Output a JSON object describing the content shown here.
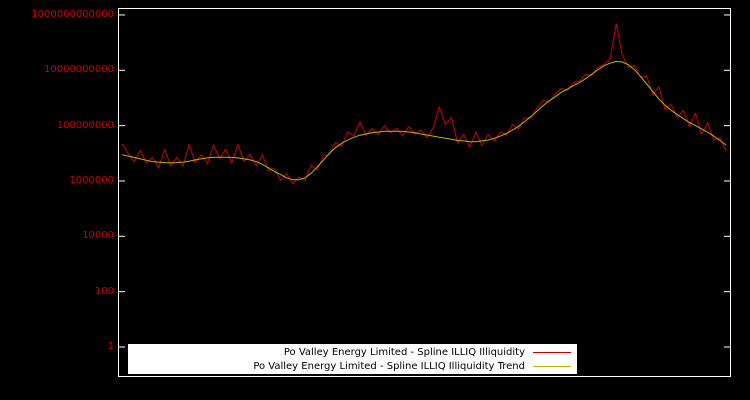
{
  "colors": {
    "background": "#000000",
    "axis_box": "#ffffff",
    "tick_labels": "#cc0000",
    "legend_background": "#ffffff",
    "series_illiquidity": "#cc0000",
    "series_trend": "#b8b800"
  },
  "chart_data": {
    "type": "line",
    "title": "",
    "xlabel": "",
    "ylabel": "",
    "y_scale": "log",
    "ylim": [
      1,
      1000000000000
    ],
    "yticks": [
      1,
      100,
      10000,
      1000000,
      100000000,
      10000000000,
      1000000000000
    ],
    "x_tick_labels_visible": false,
    "grid": false,
    "legend_position": "bottom-inside",
    "series": [
      {
        "name": "Po Valley Energy Limited - Spline ILLIQ Illiquidity",
        "color": "#cc0000",
        "values": [
          22000000.0,
          10000000.0,
          5000000.0,
          12600000.0,
          4500000.0,
          7100000.0,
          3000000.0,
          14000000.0,
          3500000.0,
          7200000.0,
          3400000.0,
          21000000.0,
          4600000.0,
          8900000.0,
          4300000.0,
          20000000.0,
          6500000.0,
          14000000.0,
          4500000.0,
          21000000.0,
          5000000.0,
          9100000.0,
          3500000.0,
          8900000.0,
          2400000.0,
          2800000.0,
          1050000.0,
          1900000.0,
          790000.0,
          1400000.0,
          1050000.0,
          3800000.0,
          2500000.0,
          7900000.0,
          8900000.0,
          25000000.0,
          18000000.0,
          60000000.0,
          43000000.0,
          140000000.0,
          45000000.0,
          78000000.0,
          47000000.0,
          98000000.0,
          56000000.0,
          79000000.0,
          44000000.0,
          93000000.0,
          49000000.0,
          71000000.0,
          36000000.0,
          83000000.0,
          480000000.0,
          110000000.0,
          200000000.0,
          23000000.0,
          49000000.0,
          17000000.0,
          59000000.0,
          19000000.0,
          48000000.0,
          28000000.0,
          59000000.0,
          47000000.0,
          110000000.0,
          76000000.0,
          190000000.0,
          190000000.0,
          420000000.0,
          830000000.0,
          710000000.0,
          1400000000.0,
          2200000000.0,
          1900000000.0,
          3500000000.0,
          4100000000.0,
          7100000000.0,
          6500000000.0,
          13000000000.0,
          16000000000.0,
          26000000000.0,
          470000000000.0,
          35000000000.0,
          12600000000.0,
          15000000000.0,
          5400000000.0,
          6300000000.0,
          1300000000.0,
          2600000000.0,
          390000000.0,
          580000000.0,
          200000000.0,
          360000000.0,
          93000000.0,
          280000000.0,
          48000000.0,
          130000000.0,
          30000000.0,
          36000000.0,
          12600000.0
        ]
      },
      {
        "name": "Po Valley Energy Limited - Spline ILLIQ Illiquidity Trend",
        "color": "#b8b800",
        "values": [
          8900000.0,
          7900000.0,
          7100000.0,
          6300000.0,
          5600000.0,
          5000000.0,
          4800000.0,
          4600000.0,
          4500000.0,
          4600000.0,
          4800000.0,
          5200000.0,
          5800000.0,
          6300000.0,
          6800000.0,
          7100000.0,
          7200000.0,
          7200000.0,
          7100000.0,
          6800000.0,
          6300000.0,
          5800000.0,
          5000000.0,
          4000000.0,
          3000000.0,
          2200000.0,
          1700000.0,
          1300000.0,
          1100000.0,
          1100000.0,
          1300000.0,
          1900000.0,
          3200000.0,
          5600000.0,
          10000000.0,
          16000000.0,
          23000000.0,
          30000000.0,
          38000000.0,
          45000000.0,
          50000000.0,
          55000000.0,
          59000000.0,
          62000000.0,
          63000000.0,
          63000000.0,
          62000000.0,
          59000000.0,
          55000000.0,
          50000000.0,
          46000000.0,
          42000000.0,
          38000000.0,
          35000000.0,
          32000000.0,
          29000000.0,
          28000000.0,
          26000000.0,
          26000000.0,
          28000000.0,
          30000000.0,
          35000000.0,
          42000000.0,
          52000000.0,
          69000000.0,
          95000000.0,
          140000000.0,
          210000000.0,
          330000000.0,
          520000000.0,
          790000000.0,
          1100000000.0,
          1600000000.0,
          2100000000.0,
          2800000000.0,
          3600000000.0,
          5000000000.0,
          7200000000.0,
          10500000000.0,
          14500000000.0,
          18000000000.0,
          21000000000.0,
          20000000000.0,
          16000000000.0,
          10500000000.0,
          6000000000.0,
          3200000000.0,
          1700000000.0,
          910000000.0,
          550000000.0,
          360000000.0,
          250000000.0,
          180000000.0,
          130000000.0,
          100000000.0,
          76000000.0,
          58000000.0,
          42000000.0,
          29000000.0,
          20000000.0
        ]
      }
    ]
  }
}
